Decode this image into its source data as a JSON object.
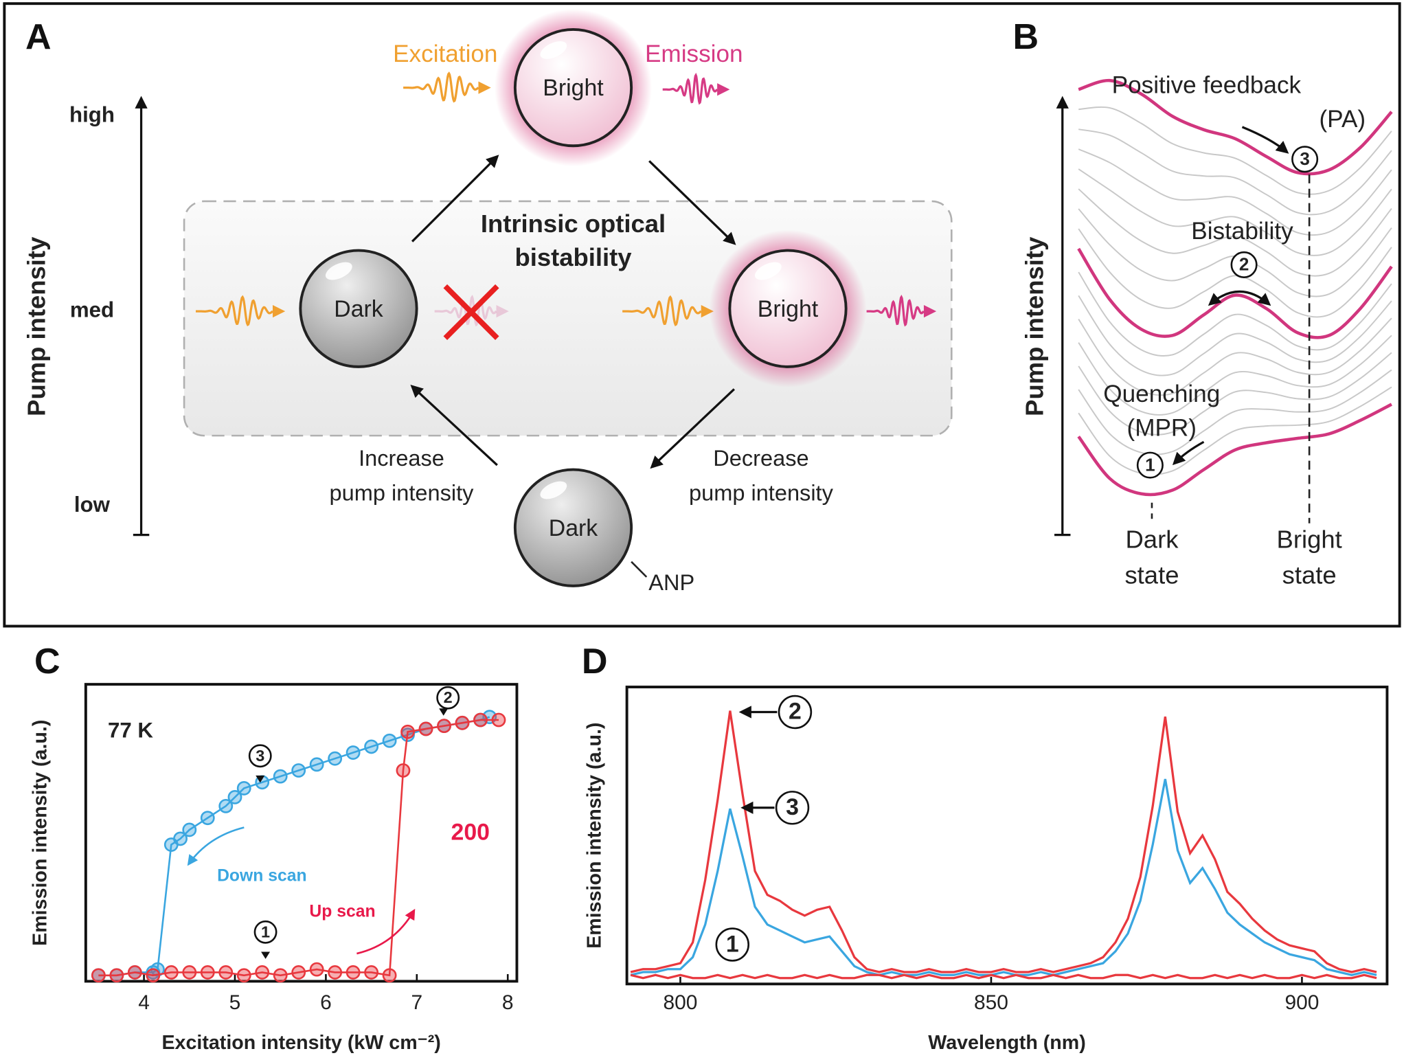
{
  "panel_a": {
    "label": "A",
    "axis_title": "Pump intensity",
    "levels": [
      "high",
      "med",
      "low"
    ],
    "excitation": "Excitation",
    "emission": "Emission",
    "bright_top": "Bright",
    "bright_mid": "Bright",
    "dark_mid": "Dark",
    "dark_low": "Dark",
    "box_title": [
      "Intrinsic optical",
      "bistability"
    ],
    "increase": [
      "Increase",
      "pump intensity"
    ],
    "decrease": [
      "Decrease",
      "pump intensity"
    ],
    "particle": "ANP"
  },
  "panel_b": {
    "label": "B",
    "axis_title": "Pump intensity",
    "feedback": [
      "Positive feedback",
      "(PA)"
    ],
    "bistability": "Bistability",
    "quenching": [
      "Quenching",
      "(MPR)"
    ],
    "steps": [
      "1",
      "2",
      "3"
    ],
    "dark_state": [
      "Dark",
      "state"
    ],
    "bright_state": [
      "Bright",
      "state"
    ]
  },
  "chart_data": [
    {
      "type": "scatter",
      "label": "C",
      "ylabel": "Emission intensity (a.u.)",
      "xlabel": "Excitation intensity (kW cm⁻²)",
      "temperature": "77 K",
      "annotation": "200",
      "xlim": [
        3.36,
        8.1
      ],
      "xticks": [
        4,
        5,
        6,
        7,
        8
      ],
      "ylim": [
        0,
        1
      ],
      "series": [
        {
          "name": "Down scan",
          "color": "#3aa6e0",
          "x": [
            3.5,
            3.7,
            3.9,
            4.1,
            4.15,
            4.3,
            4.4,
            4.5,
            4.7,
            4.9,
            5.0,
            5.1,
            5.3,
            5.5,
            5.7,
            5.9,
            6.1,
            6.3,
            6.5,
            6.7,
            6.9,
            7.1,
            7.3,
            7.5,
            7.7,
            7.8
          ],
          "values": [
            0.02,
            0.02,
            0.03,
            0.03,
            0.04,
            0.46,
            0.48,
            0.51,
            0.55,
            0.59,
            0.62,
            0.65,
            0.67,
            0.69,
            0.71,
            0.73,
            0.75,
            0.77,
            0.79,
            0.81,
            0.83,
            0.85,
            0.86,
            0.87,
            0.88,
            0.89
          ]
        },
        {
          "name": "Up scan",
          "color": "#e8383e",
          "x": [
            3.5,
            3.7,
            3.9,
            4.1,
            4.3,
            4.5,
            4.7,
            4.9,
            5.1,
            5.3,
            5.5,
            5.7,
            5.9,
            6.1,
            6.3,
            6.5,
            6.7,
            6.85,
            6.9,
            7.1,
            7.3,
            7.5,
            7.7,
            7.9
          ],
          "values": [
            0.02,
            0.02,
            0.03,
            0.02,
            0.03,
            0.03,
            0.03,
            0.03,
            0.02,
            0.03,
            0.02,
            0.03,
            0.04,
            0.03,
            0.03,
            0.03,
            0.02,
            0.71,
            0.84,
            0.85,
            0.86,
            0.87,
            0.88,
            0.88
          ]
        }
      ],
      "markers": [
        "1",
        "2",
        "3"
      ]
    },
    {
      "type": "line",
      "label": "D",
      "ylabel": "Emission intensity (a.u.)",
      "xlabel": "Wavelength (nm)",
      "xlim": [
        791.4,
        913.7
      ],
      "xticks": [
        800,
        850,
        900
      ],
      "ylim": [
        0,
        1
      ],
      "x": [
        792,
        794,
        796,
        798,
        800,
        802,
        804,
        806,
        808,
        810,
        812,
        814,
        816,
        818,
        820,
        822,
        824,
        826,
        828,
        830,
        832,
        834,
        836,
        838,
        840,
        842,
        844,
        846,
        848,
        850,
        852,
        854,
        856,
        858,
        860,
        862,
        864,
        866,
        868,
        870,
        872,
        874,
        876,
        878,
        880,
        882,
        884,
        886,
        888,
        890,
        892,
        894,
        896,
        898,
        900,
        902,
        904,
        906,
        908,
        910,
        912
      ],
      "series": [
        {
          "color": "#e8383e",
          "values": [
            0.04,
            0.05,
            0.05,
            0.06,
            0.07,
            0.14,
            0.35,
            0.62,
            0.92,
            0.64,
            0.38,
            0.3,
            0.28,
            0.25,
            0.23,
            0.25,
            0.26,
            0.18,
            0.09,
            0.05,
            0.04,
            0.05,
            0.04,
            0.04,
            0.05,
            0.04,
            0.04,
            0.05,
            0.04,
            0.04,
            0.05,
            0.04,
            0.04,
            0.05,
            0.04,
            0.05,
            0.06,
            0.07,
            0.09,
            0.14,
            0.22,
            0.36,
            0.6,
            0.9,
            0.58,
            0.44,
            0.5,
            0.42,
            0.31,
            0.27,
            0.22,
            0.18,
            0.15,
            0.13,
            0.12,
            0.11,
            0.07,
            0.05,
            0.04,
            0.05,
            0.04
          ]
        },
        {
          "color": "#3aa6e0",
          "values": [
            0.03,
            0.04,
            0.04,
            0.05,
            0.05,
            0.09,
            0.2,
            0.38,
            0.59,
            0.43,
            0.26,
            0.2,
            0.18,
            0.16,
            0.14,
            0.15,
            0.16,
            0.11,
            0.06,
            0.04,
            0.03,
            0.04,
            0.03,
            0.03,
            0.04,
            0.03,
            0.03,
            0.04,
            0.03,
            0.03,
            0.04,
            0.03,
            0.03,
            0.04,
            0.03,
            0.04,
            0.05,
            0.06,
            0.07,
            0.11,
            0.17,
            0.28,
            0.47,
            0.69,
            0.45,
            0.34,
            0.39,
            0.32,
            0.24,
            0.2,
            0.17,
            0.14,
            0.12,
            0.1,
            0.09,
            0.08,
            0.05,
            0.04,
            0.03,
            0.04,
            0.03
          ]
        },
        {
          "color": "#e8383e",
          "values": [
            0.03,
            0.02,
            0.03,
            0.02,
            0.03,
            0.02,
            0.02,
            0.03,
            0.02,
            0.03,
            0.02,
            0.03,
            0.02,
            0.02,
            0.03,
            0.02,
            0.03,
            0.02,
            0.02,
            0.03,
            0.03,
            0.02,
            0.03,
            0.02,
            0.03,
            0.02,
            0.02,
            0.03,
            0.02,
            0.03,
            0.02,
            0.03,
            0.02,
            0.02,
            0.03,
            0.02,
            0.03,
            0.02,
            0.02,
            0.03,
            0.03,
            0.02,
            0.03,
            0.02,
            0.03,
            0.02,
            0.02,
            0.03,
            0.02,
            0.03,
            0.02,
            0.03,
            0.02,
            0.02,
            0.03,
            0.02,
            0.03,
            0.02,
            0.02,
            0.03,
            0.02
          ]
        }
      ],
      "markers": [
        "2",
        "3",
        "1"
      ]
    }
  ]
}
